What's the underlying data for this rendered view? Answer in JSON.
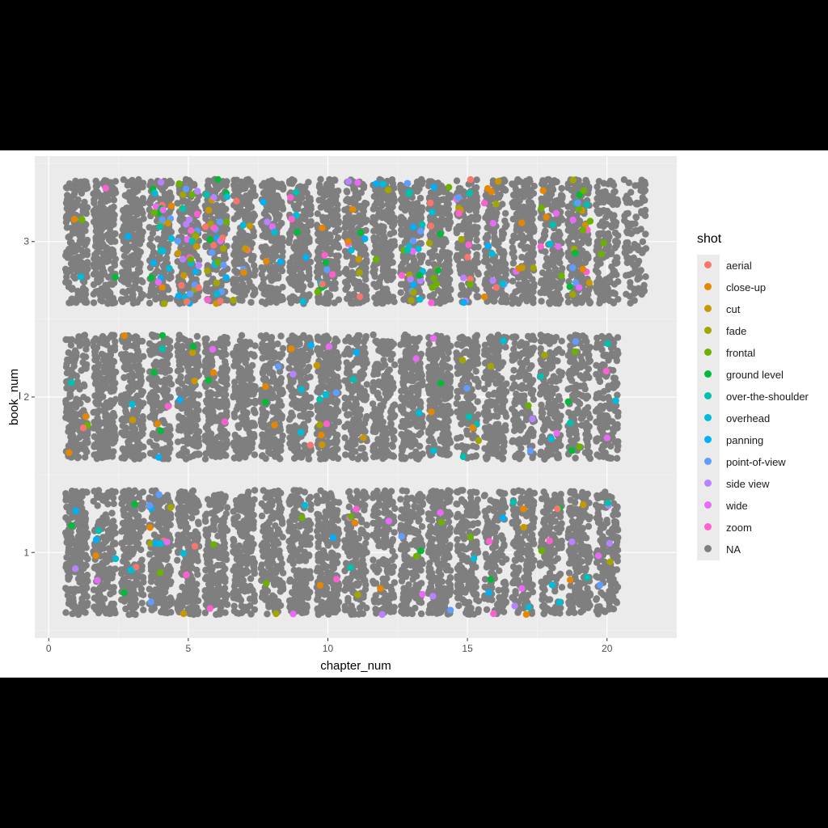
{
  "chart_data": {
    "type": "scatter",
    "xlabel": "chapter_num",
    "ylabel": "book_num",
    "xlim": [
      -0.5,
      22.5
    ],
    "ylim": [
      0.45,
      3.55
    ],
    "x_ticks": [
      0,
      5,
      10,
      15,
      20
    ],
    "y_ticks": [
      1,
      2,
      3
    ],
    "jitter": {
      "x": 0.4,
      "y": 0.4
    },
    "grid": true,
    "legend_position": "right",
    "legend": {
      "title": "shot",
      "items": [
        {
          "label": "aerial",
          "color": "#F8766D"
        },
        {
          "label": "close-up",
          "color": "#E58700"
        },
        {
          "label": "cut",
          "color": "#C99800"
        },
        {
          "label": "fade",
          "color": "#A3A500"
        },
        {
          "label": "frontal",
          "color": "#6BB100"
        },
        {
          "label": "ground level",
          "color": "#00BA38"
        },
        {
          "label": "over-the-shoulder",
          "color": "#00C0AF"
        },
        {
          "label": "overhead",
          "color": "#00BCD8"
        },
        {
          "label": "panning",
          "color": "#00B0F6"
        },
        {
          "label": "point-of-view",
          "color": "#619CFF"
        },
        {
          "label": "side view",
          "color": "#B983FF"
        },
        {
          "label": "wide",
          "color": "#E76BF3"
        },
        {
          "label": "zoom",
          "color": "#FD61D1"
        },
        {
          "label": "NA",
          "color": "#7F7F7F"
        }
      ]
    },
    "books": [
      {
        "book_num": 1,
        "chapters": [
          1,
          2,
          3,
          4,
          5,
          6,
          7,
          8,
          9,
          10,
          11,
          12,
          13,
          14,
          15,
          16,
          17,
          18,
          19,
          20
        ],
        "points_per_chapter": [
          230,
          170,
          190,
          240,
          200,
          180,
          170,
          180,
          200,
          210,
          180,
          170,
          160,
          260,
          170,
          150,
          170,
          150,
          190,
          150
        ],
        "colored_share": [
          0.01,
          0.02,
          0.04,
          0.06,
          0.02,
          0.02,
          0.01,
          0.02,
          0.02,
          0.03,
          0.03,
          0.02,
          0.01,
          0.02,
          0.02,
          0.02,
          0.03,
          0.02,
          0.04,
          0.05
        ]
      },
      {
        "book_num": 2,
        "chapters": [
          1,
          2,
          3,
          4,
          5,
          6,
          7,
          8,
          9,
          10,
          11,
          12,
          13,
          14,
          15,
          16,
          17,
          18,
          19,
          20
        ],
        "points_per_chapter": [
          160,
          220,
          200,
          170,
          190,
          210,
          180,
          200,
          190,
          220,
          160,
          170,
          190,
          220,
          170,
          180,
          150,
          170,
          160,
          140
        ],
        "colored_share": [
          0.03,
          0.01,
          0.02,
          0.03,
          0.03,
          0.03,
          0.01,
          0.01,
          0.02,
          0.04,
          0.02,
          0.01,
          0.01,
          0.03,
          0.04,
          0.03,
          0.02,
          0.02,
          0.03,
          0.02
        ]
      },
      {
        "book_num": 3,
        "chapters": [
          1,
          2,
          3,
          4,
          5,
          6,
          7,
          8,
          9,
          10,
          11,
          12,
          13,
          14,
          15,
          16,
          17,
          18,
          19,
          20,
          21
        ],
        "points_per_chapter": [
          200,
          230,
          210,
          190,
          230,
          210,
          190,
          200,
          190,
          210,
          200,
          190,
          230,
          220,
          180,
          190,
          200,
          170,
          200,
          160,
          110
        ],
        "colored_share": [
          0.01,
          0.01,
          0.01,
          0.14,
          0.14,
          0.12,
          0.04,
          0.04,
          0.03,
          0.04,
          0.04,
          0.03,
          0.1,
          0.06,
          0.04,
          0.05,
          0.03,
          0.05,
          0.12,
          0.03,
          0.02
        ]
      }
    ]
  }
}
